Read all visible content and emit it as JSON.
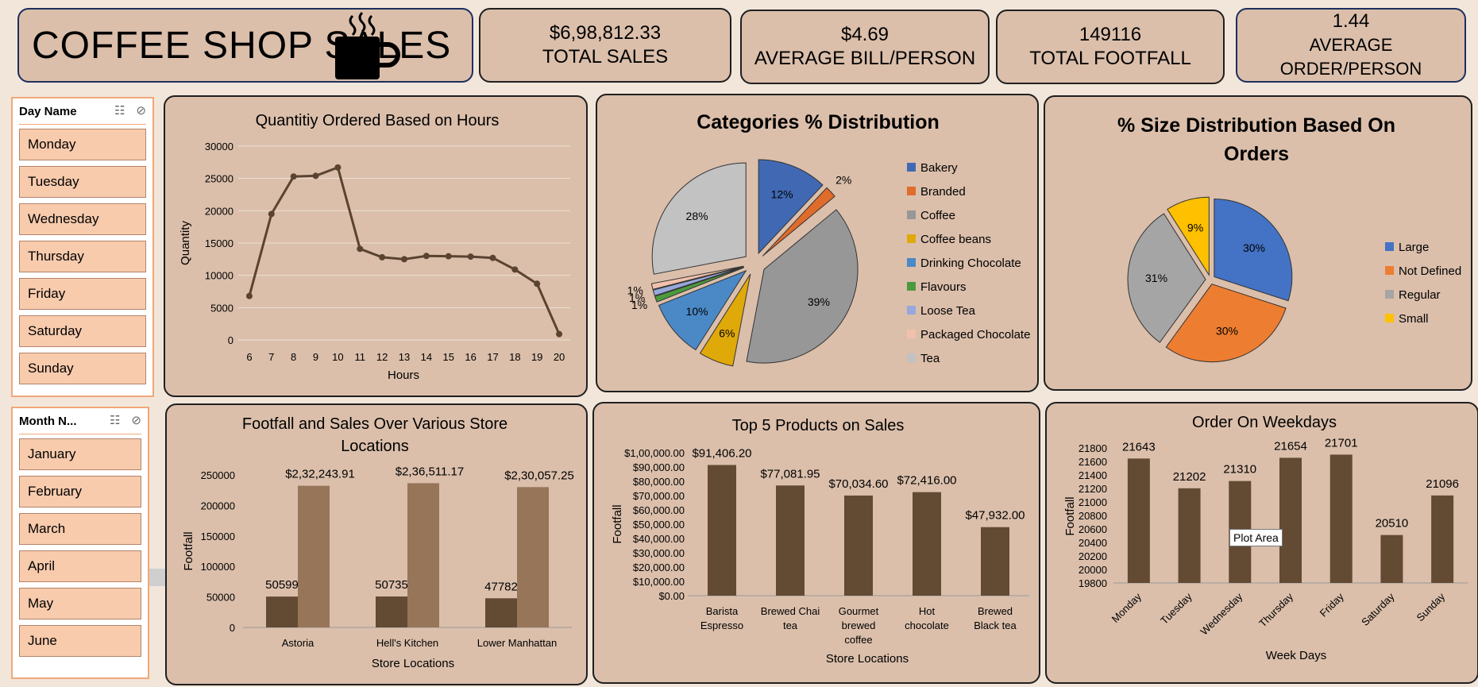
{
  "header": {
    "title": "COFFEE SHOP SALES",
    "icon": "coffee-mug-icon"
  },
  "kpis": [
    {
      "value": "$6,98,812.33",
      "label": "TOTAL SALES"
    },
    {
      "value": "$4.69",
      "label": "AVERAGE BILL/PERSON"
    },
    {
      "value": "149116",
      "label": "TOTAL FOOTFALL"
    },
    {
      "value": "1.44",
      "label": "AVERAGE ORDER/PERSON"
    }
  ],
  "slicers": {
    "day": {
      "title": "Day Name",
      "items": [
        "Monday",
        "Tuesday",
        "Wednesday",
        "Thursday",
        "Friday",
        "Saturday",
        "Sunday"
      ]
    },
    "month": {
      "title": "Month N...",
      "items": [
        "January",
        "February",
        "March",
        "April",
        "May",
        "June"
      ]
    }
  },
  "tooltip": "Plot Area",
  "colors": {
    "card_bg": "#dbbfab",
    "dark_brown": "#634a33",
    "light_brown": "#977559",
    "slicer_item": "#f8cbad"
  },
  "chart_data": [
    {
      "id": "hours",
      "type": "line",
      "title": "Quantitiy Ordered Based on Hours",
      "xlabel": "Hours",
      "ylabel": "Quantity",
      "x": [
        6,
        7,
        8,
        9,
        10,
        11,
        12,
        13,
        14,
        15,
        16,
        17,
        18,
        19,
        20
      ],
      "values": [
        6800,
        19500,
        25300,
        25400,
        26700,
        14100,
        12800,
        12500,
        13000,
        12950,
        12900,
        12700,
        10900,
        8700,
        900
      ],
      "ylim": [
        0,
        30000
      ],
      "yticks": [
        0,
        5000,
        10000,
        15000,
        20000,
        25000,
        30000
      ],
      "grid": true,
      "color": "#5b4331"
    },
    {
      "id": "categories",
      "type": "pie",
      "title": "Categories  % Distribution",
      "legend_position": "right",
      "slices": [
        {
          "name": "Bakery",
          "value": 12,
          "label": "12%",
          "color": "#4169b3"
        },
        {
          "name": "Branded",
          "value": 2,
          "label": "2%",
          "color": "#e06c2b"
        },
        {
          "name": "Coffee",
          "value": 39,
          "label": "39%",
          "color": "#979797"
        },
        {
          "name": "Coffee beans",
          "value": 6,
          "label": "6%",
          "color": "#e0a90a"
        },
        {
          "name": "Drinking Chocolate",
          "value": 10,
          "label": "10%",
          "color": "#4b89c6"
        },
        {
          "name": "Flavours",
          "value": 1,
          "label": "1%",
          "color": "#4c9a3d"
        },
        {
          "name": "Loose Tea",
          "value": 1,
          "label": "1%",
          "color": "#97a8dc"
        },
        {
          "name": "Packaged Chocolate",
          "value": 1,
          "label": "1%",
          "color": "#f1c1ab"
        },
        {
          "name": "Tea",
          "value": 28,
          "label": "28%",
          "color": "#c2c2c2"
        }
      ]
    },
    {
      "id": "sizes",
      "type": "pie",
      "title": "% Size Distribution Based On Orders",
      "legend_position": "right",
      "slices": [
        {
          "name": "Large",
          "value": 30,
          "label": "30%",
          "color": "#4472c4"
        },
        {
          "name": "Not Defined",
          "value": 30,
          "label": "30%",
          "color": "#ed7d31"
        },
        {
          "name": "Regular",
          "value": 31,
          "label": "31%",
          "color": "#a5a5a5"
        },
        {
          "name": "Small",
          "value": 9,
          "label": "9%",
          "color": "#ffc000"
        }
      ]
    },
    {
      "id": "stores",
      "type": "bar",
      "title": "Footfall and Sales Over Various Store Locations",
      "xlabel": "Store Locations",
      "ylabel": "Footfall",
      "categories": [
        "Astoria",
        "Hell's Kitchen",
        "Lower Manhattan"
      ],
      "series": [
        {
          "values": [
            50599,
            50735,
            47782
          ],
          "labels": [
            "50599",
            "50735",
            "47782"
          ],
          "color": "#634a33"
        },
        {
          "values": [
            232243.91,
            236511.17,
            230057.25
          ],
          "labels": [
            "$2,32,243.91",
            "$2,36,511.17",
            "$2,30,057.25"
          ],
          "color": "#977559"
        }
      ],
      "ylim": [
        0,
        250000
      ],
      "yticks": [
        0,
        50000,
        100000,
        150000,
        200000,
        250000
      ]
    },
    {
      "id": "products",
      "type": "bar",
      "title": "Top 5 Products on Sales",
      "xlabel": "Store Locations",
      "ylabel": "Footfall",
      "categories": [
        [
          "Barista",
          "Espresso"
        ],
        [
          "Brewed Chai",
          "tea"
        ],
        [
          "Gourmet",
          "brewed",
          "coffee"
        ],
        [
          "Hot",
          "chocolate"
        ],
        [
          "Brewed",
          "Black tea"
        ]
      ],
      "values": [
        91406.2,
        77081.95,
        70034.6,
        72416.0,
        47932.0
      ],
      "labels": [
        "$91,406.20",
        "$77,081.95",
        "$70,034.60",
        "$72,416.00",
        "$47,932.00"
      ],
      "ylim": [
        0,
        100000
      ],
      "ytick_labels": [
        "$0.00",
        "$10,000.00",
        "$20,000.00",
        "$30,000.00",
        "$40,000.00",
        "$50,000.00",
        "$60,000.00",
        "$70,000.00",
        "$80,000.00",
        "$90,000.00",
        "$1,00,000.00"
      ],
      "color": "#634a33"
    },
    {
      "id": "weekdays",
      "type": "bar",
      "title": "Order On Weekdays",
      "xlabel": "Week Days",
      "ylabel": "Footfall",
      "categories": [
        "Monday",
        "Tuesday",
        "Wednesday",
        "Thursday",
        "Friday",
        "Saturday",
        "Sunday"
      ],
      "values": [
        21643,
        21202,
        21310,
        21654,
        21701,
        20510,
        21096
      ],
      "labels": [
        "21643",
        "21202",
        "21310",
        "21654",
        "21701",
        "20510",
        "21096"
      ],
      "ylim": [
        19800,
        21800
      ],
      "yticks": [
        19800,
        20000,
        20200,
        20400,
        20600,
        20800,
        21000,
        21200,
        21400,
        21600,
        21800
      ],
      "color": "#634a33"
    }
  ]
}
